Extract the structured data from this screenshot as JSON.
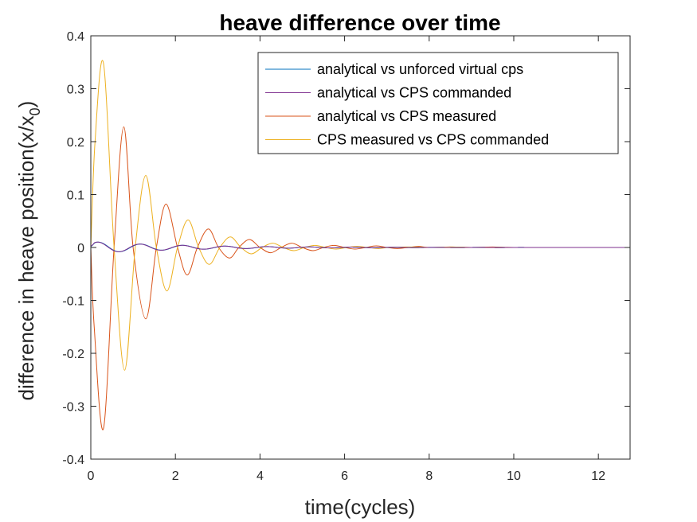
{
  "chart_data": {
    "type": "line",
    "title": "heave difference over time",
    "xlabel": "time(cycles)",
    "ylabel_main": "difference in heave position(x/x",
    "ylabel_sub": "0",
    "ylabel_close": ")",
    "xlim": [
      0,
      12.75
    ],
    "ylim": [
      -0.4,
      0.4
    ],
    "x_ticks": [
      0,
      2,
      4,
      6,
      8,
      10,
      12
    ],
    "x_tick_labels": [
      "0",
      "2",
      "4",
      "6",
      "8",
      "10",
      "12"
    ],
    "y_ticks": [
      -0.4,
      -0.3,
      -0.2,
      -0.1,
      0,
      0.1,
      0.2,
      0.3,
      0.4
    ],
    "y_tick_labels": [
      "-0.4",
      "-0.3",
      "-0.2",
      "-0.1",
      "0",
      "0.1",
      "0.2",
      "0.3",
      "0.4"
    ],
    "grid": false,
    "legend_position": "top-right",
    "series": [
      {
        "name": "analytical vs unforced virtual cps",
        "color": "#0072BD",
        "model": {
          "A0": 0.011,
          "tau": 2.2,
          "period": 1.0,
          "phase": 0.4,
          "tmax": 12.75
        }
      },
      {
        "name": "analytical vs CPS commanded",
        "color": "#7E2F8E",
        "model": {
          "A0": 0.011,
          "tau": 2.2,
          "period": 1.0,
          "phase": 0.5,
          "tmax": 12.75
        }
      },
      {
        "name": "analytical vs CPS measured",
        "color": "#D95319",
        "points": [
          [
            0,
            0.0
          ],
          [
            0.08,
            -0.15
          ],
          [
            0.3,
            -0.342
          ],
          [
            0.55,
            0.0
          ],
          [
            0.78,
            0.228
          ],
          [
            1.0,
            0.0
          ],
          [
            1.3,
            -0.135
          ],
          [
            1.55,
            0.0
          ],
          [
            1.78,
            0.082
          ],
          [
            2.05,
            0.0
          ],
          [
            2.28,
            -0.052
          ],
          [
            2.52,
            0.0
          ],
          [
            2.78,
            0.035
          ],
          [
            3.02,
            0.0
          ],
          [
            3.28,
            -0.02
          ],
          [
            3.5,
            0.0
          ],
          [
            3.75,
            0.015
          ],
          [
            4.0,
            0.0
          ],
          [
            4.25,
            -0.01
          ],
          [
            4.5,
            0.0
          ],
          [
            4.75,
            0.008
          ],
          [
            5.0,
            0.0
          ],
          [
            5.25,
            -0.006
          ],
          [
            5.5,
            0.0
          ],
          [
            5.75,
            0.004
          ],
          [
            6.0,
            0.0
          ],
          [
            6.25,
            -0.003
          ],
          [
            6.5,
            0.0
          ],
          [
            6.75,
            0.003
          ],
          [
            7.0,
            0.0
          ],
          [
            7.25,
            -0.002
          ],
          [
            7.5,
            0.0
          ],
          [
            7.75,
            0.002
          ],
          [
            8.0,
            0.0
          ],
          [
            8.5,
            0.001
          ],
          [
            9.0,
            0.0
          ],
          [
            9.5,
            0.001
          ],
          [
            10.0,
            0.0
          ],
          [
            11.0,
            0.0
          ],
          [
            12.75,
            0.0
          ]
        ]
      },
      {
        "name": "CPS measured vs CPS commanded",
        "color": "#EDB120",
        "points": [
          [
            0,
            0.0
          ],
          [
            0.1,
            0.2
          ],
          [
            0.3,
            0.348
          ],
          [
            0.55,
            0.0
          ],
          [
            0.8,
            -0.232
          ],
          [
            1.05,
            0.0
          ],
          [
            1.3,
            0.136
          ],
          [
            1.55,
            0.0
          ],
          [
            1.8,
            -0.082
          ],
          [
            2.05,
            0.0
          ],
          [
            2.3,
            0.052
          ],
          [
            2.55,
            0.0
          ],
          [
            2.8,
            -0.032
          ],
          [
            3.05,
            0.0
          ],
          [
            3.3,
            0.02
          ],
          [
            3.55,
            0.0
          ],
          [
            3.8,
            -0.012
          ],
          [
            4.05,
            0.0
          ],
          [
            4.3,
            0.008
          ],
          [
            4.55,
            0.0
          ],
          [
            4.8,
            -0.006
          ],
          [
            5.05,
            0.0
          ],
          [
            5.3,
            0.004
          ],
          [
            5.55,
            0.0
          ],
          [
            5.8,
            -0.003
          ],
          [
            6.05,
            0.0
          ],
          [
            6.3,
            0.002
          ],
          [
            6.55,
            0.0
          ],
          [
            6.8,
            -0.002
          ],
          [
            7.05,
            0.0
          ],
          [
            7.55,
            0.001
          ],
          [
            8.05,
            0.0
          ],
          [
            8.55,
            0.001
          ],
          [
            9.05,
            0.0
          ],
          [
            10.0,
            0.0
          ],
          [
            12.75,
            0.0
          ]
        ]
      }
    ]
  }
}
